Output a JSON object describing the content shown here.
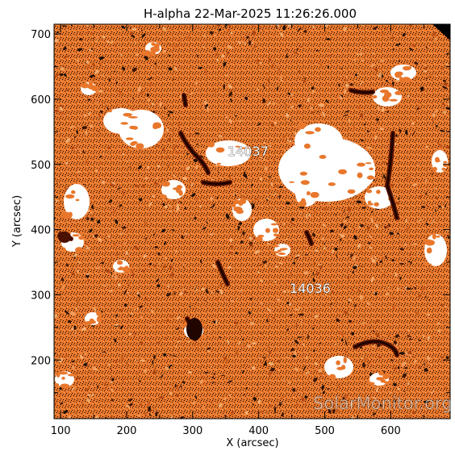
{
  "title": "H-alpha 22-Mar-2025 11:26:26.000",
  "axes": {
    "xlabel": "X (arcsec)",
    "ylabel": "Y (arcsec)",
    "xticks": [
      "100",
      "200",
      "300",
      "400",
      "500",
      "600"
    ],
    "yticks": [
      "200",
      "300",
      "400",
      "500",
      "600",
      "700"
    ],
    "xrange": [
      90,
      690
    ],
    "yrange": [
      110,
      715
    ]
  },
  "regions": [
    {
      "label": "14037"
    },
    {
      "label": "14036"
    }
  ],
  "watermark": "SolarMonitor.org",
  "colors": {
    "background": "#ffffff",
    "plot_base": "#e8772c",
    "plot_light": "#f4a35e",
    "plot_dark": "#7a2406",
    "filament": "#5a1402",
    "speckle": "#000000",
    "plage": "#ffffff"
  }
}
